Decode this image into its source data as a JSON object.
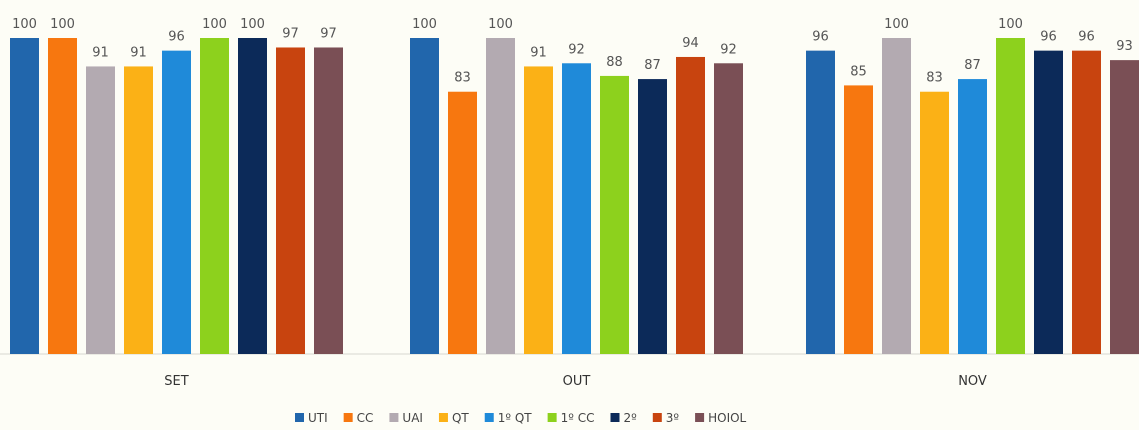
{
  "chart_data": {
    "type": "bar",
    "categories": [
      "SET",
      "OUT",
      "NOV"
    ],
    "series": [
      {
        "name": "UTI",
        "color": "#2166ac",
        "values": [
          100,
          100,
          96
        ]
      },
      {
        "name": "CC",
        "color": "#f7770f",
        "values": [
          100,
          83,
          85
        ]
      },
      {
        "name": "UAI",
        "color": "#b3aab1",
        "values": [
          91,
          100,
          100
        ]
      },
      {
        "name": "QT",
        "color": "#fbb116",
        "values": [
          91,
          91,
          83
        ]
      },
      {
        "name": "1º QT",
        "color": "#1f8ad9",
        "values": [
          96,
          92,
          87
        ]
      },
      {
        "name": "1º CC",
        "color": "#8dd11d",
        "values": [
          100,
          88,
          100
        ]
      },
      {
        "name": "2º",
        "color": "#0c2a59",
        "values": [
          100,
          87,
          96
        ]
      },
      {
        "name": "3º",
        "color": "#c8440f",
        "values": [
          97,
          94,
          96
        ]
      },
      {
        "name": "HOIOL",
        "color": "#7a4f55",
        "values": [
          97,
          92,
          93
        ]
      }
    ],
    "ylim": [
      0,
      100
    ],
    "grid": false,
    "legend": "bottom"
  }
}
